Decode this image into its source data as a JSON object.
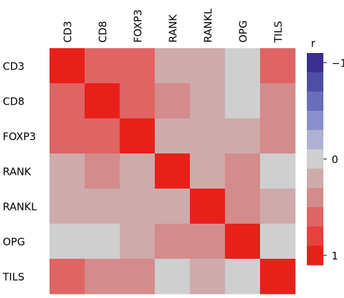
{
  "chart_data": {
    "type": "heatmap",
    "variables": [
      "CD3",
      "CD8",
      "FOXP3",
      "RANK",
      "RANKL",
      "OPG",
      "TILS"
    ],
    "matrix": [
      [
        1.0,
        0.7,
        0.65,
        0.2,
        0.3,
        0.05,
        0.55
      ],
      [
        0.7,
        1.0,
        0.65,
        0.35,
        0.3,
        0.08,
        0.45
      ],
      [
        0.65,
        0.65,
        1.0,
        0.2,
        0.25,
        0.12,
        0.5
      ],
      [
        0.2,
        0.35,
        0.2,
        1.0,
        0.3,
        0.35,
        0.1
      ],
      [
        0.3,
        0.3,
        0.25,
        0.3,
        1.0,
        0.4,
        0.18
      ],
      [
        0.05,
        0.08,
        0.12,
        0.35,
        0.4,
        1.0,
        0.02
      ],
      [
        0.55,
        0.45,
        0.5,
        0.1,
        0.18,
        0.02,
        1.0
      ]
    ],
    "colorbar": {
      "title": "r",
      "tick_labels": [
        "−1",
        "0",
        "1"
      ],
      "tick_values": [
        -1,
        0,
        1
      ],
      "levels": [
        {
          "value": -1.0,
          "color": "#3b2f8f"
        },
        {
          "value": -0.8,
          "color": "#4e4ea6"
        },
        {
          "value": -0.6,
          "color": "#6a6db8"
        },
        {
          "value": -0.4,
          "color": "#8a90cd"
        },
        {
          "value": -0.2,
          "color": "#afb1d3"
        },
        {
          "value": 0.0,
          "color": "#cfcfcf"
        },
        {
          "value": 0.2,
          "color": "#cfaaab"
        },
        {
          "value": 0.4,
          "color": "#d48b8b"
        },
        {
          "value": 0.6,
          "color": "#df6464"
        },
        {
          "value": 0.8,
          "color": "#e83f3f"
        },
        {
          "value": 1.0,
          "color": "#e8201a"
        }
      ]
    }
  }
}
